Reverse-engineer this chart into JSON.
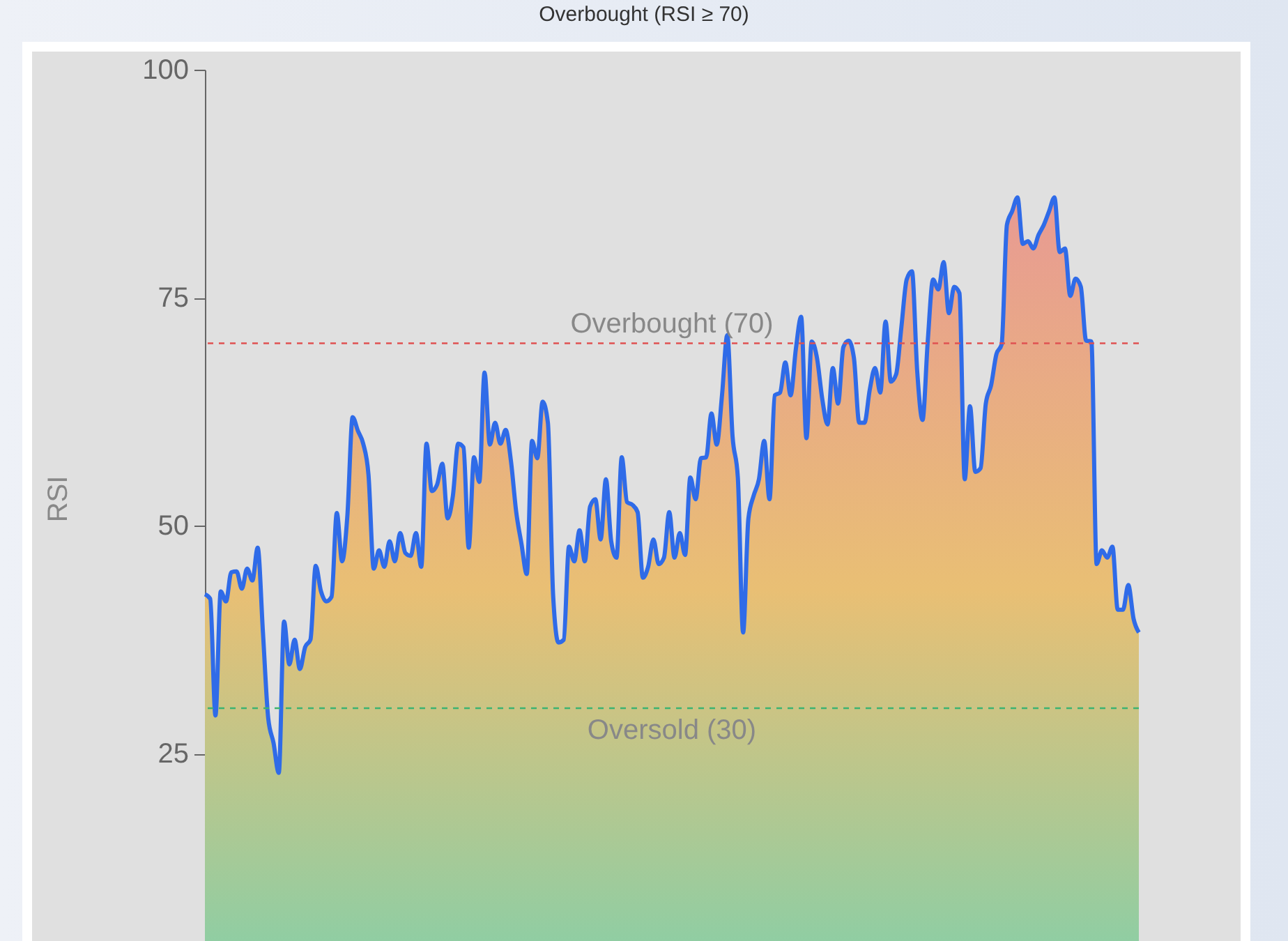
{
  "chart_data": {
    "type": "area",
    "title": "Overbought (RSI ≥ 70)",
    "ylabel": "RSI",
    "categories": [
      null,
      null,
      null,
      null,
      null,
      null,
      null,
      null,
      null,
      null,
      null,
      null,
      null,
      null,
      null,
      null,
      null,
      null,
      null,
      null,
      null,
      null,
      null,
      null,
      null,
      null,
      null,
      null,
      null,
      null,
      null,
      null,
      null,
      null,
      null,
      null,
      null,
      null,
      null,
      null,
      null,
      null,
      null,
      null,
      null,
      null,
      null,
      null,
      null,
      null,
      null,
      null,
      null,
      null,
      null,
      null,
      null,
      null,
      null,
      null,
      null,
      null,
      null,
      null,
      null,
      null,
      null,
      null,
      null,
      null,
      null,
      null,
      null,
      null,
      null,
      null,
      null,
      null,
      null,
      null,
      null,
      null,
      null,
      null,
      null,
      null,
      null,
      null,
      null,
      null,
      null,
      null,
      null,
      null,
      null,
      null,
      null,
      null,
      null,
      null,
      null,
      null,
      null,
      null,
      null,
      null,
      null,
      null,
      null,
      null,
      null,
      null,
      null,
      null,
      null,
      null,
      null,
      null,
      null,
      null,
      null,
      null,
      null,
      null,
      null,
      null,
      null,
      null,
      null,
      null,
      null,
      null,
      null,
      null,
      null,
      null,
      null,
      null,
      null,
      null,
      null,
      null,
      null,
      null,
      null,
      null,
      null,
      null,
      null,
      null,
      null,
      null,
      null,
      null,
      null,
      null,
      null,
      null,
      null,
      null,
      null,
      null,
      null,
      null,
      null,
      null,
      null,
      null,
      null,
      null,
      null,
      null,
      null,
      null,
      null,
      null,
      null,
      null
    ],
    "series": [
      {
        "color": "#2f6be8",
        "values": [
          42.5,
          42.0,
          29.2,
          42.8,
          41.7,
          44.9,
          45.0,
          43.1,
          45.3,
          44.0,
          47.6,
          38.3,
          28.9,
          26.2,
          22.9,
          39.5,
          34.8,
          37.5,
          34.3,
          36.7,
          37.5,
          45.6,
          42.8,
          41.7,
          42.2,
          51.4,
          46.1,
          51.1,
          61.9,
          60.4,
          59.0,
          55.6,
          45.3,
          47.3,
          45.5,
          48.3,
          46.1,
          49.2,
          47.0,
          46.7,
          49.2,
          45.5,
          59.0,
          53.8,
          54.5,
          56.8,
          50.8,
          53.3,
          59.0,
          58.6,
          47.6,
          57.5,
          54.8,
          66.8,
          58.9,
          61.3,
          59.0,
          60.5,
          57.1,
          51.5,
          48.0,
          44.7,
          59.3,
          57.4,
          63.6,
          61.3,
          42.3,
          37.2,
          37.5,
          47.7,
          46.1,
          49.5,
          46.1,
          52.1,
          52.9,
          48.5,
          55.1,
          48.3,
          46.5,
          57.5,
          52.6,
          52.3,
          51.5,
          44.3,
          45.5,
          48.5,
          45.8,
          46.5,
          51.5,
          46.5,
          49.2,
          46.8,
          55.3,
          52.9,
          57.4,
          57.5,
          62.3,
          58.9,
          64.3,
          70.9,
          59.8,
          55.3,
          38.3,
          50.8,
          53.3,
          55.1,
          59.3,
          52.9,
          64.3,
          64.6,
          67.9,
          64.3,
          69.4,
          72.9,
          59.6,
          70.2,
          68.4,
          63.9,
          61.1,
          67.3,
          63.4,
          69.6,
          70.3,
          68.4,
          61.3,
          61.3,
          64.9,
          67.3,
          64.6,
          72.4,
          65.8,
          66.6,
          71.8,
          77.0,
          77.9,
          66.9,
          61.6,
          70.3,
          77.0,
          75.9,
          78.9,
          73.3,
          76.2,
          75.5,
          55.1,
          63.1,
          55.9,
          56.3,
          63.4,
          65.4,
          68.8,
          69.9,
          83.0,
          84.5,
          86.0,
          80.9,
          81.2,
          80.4,
          81.9,
          83.0,
          84.5,
          86.0,
          80.0,
          80.4,
          75.2,
          77.1,
          76.2,
          70.3,
          70.2,
          45.8,
          47.3,
          46.5,
          47.7,
          40.8,
          40.8,
          43.5,
          39.8,
          38.3
        ]
      }
    ],
    "ylim": [
      6,
      100
    ],
    "yticks": [
      25,
      50,
      75,
      100
    ],
    "grid": false,
    "marker": "none",
    "line_style": "solid",
    "ref_lines": [
      {
        "axis": "y",
        "value": 70,
        "label": "Overbought (70)",
        "color": "#e05252",
        "line_style": "dashed"
      },
      {
        "axis": "y",
        "value": 30,
        "label": "Oversold (30)",
        "color": "#3cb371",
        "line_style": "dashed"
      }
    ]
  }
}
